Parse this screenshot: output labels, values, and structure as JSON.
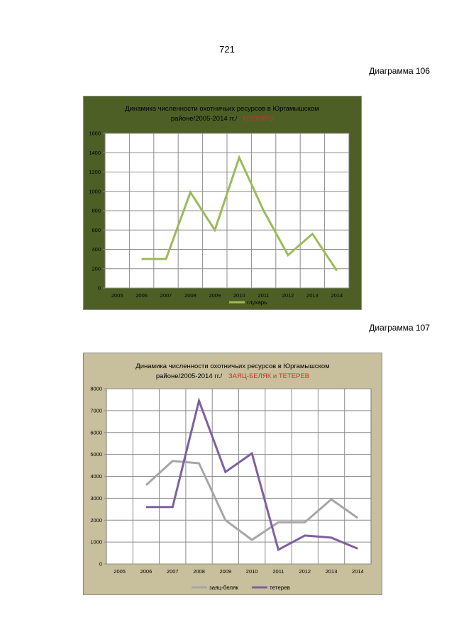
{
  "page": {
    "number": "721"
  },
  "labels": {
    "diagram_1": "Диаграмма 106",
    "diagram_2": "Диаграмма 107"
  },
  "colors": {
    "chart1_background": "#4e5f26",
    "chart2_background": "#c8bf9c",
    "plot_background": "#ffffff",
    "grid": "#8c8c8c",
    "title_accent": "#c0392b",
    "grouse": "#9bbb59",
    "hare": "#a6a6a6",
    "black_grouse": "#7f5fa0"
  },
  "chart_data": [
    {
      "type": "line",
      "title_line1": "Динамика численности охотничьих ресурсов  в  Юргамышском",
      "title_line2_plain": "районе/2005-2014 гг./",
      "title_line2_accent": "ГЛУХАРЬ",
      "x": [
        "2005",
        "2006",
        "2007",
        "2008",
        "2009",
        "2010",
        "2011",
        "2012",
        "2013",
        "2014"
      ],
      "ylim": [
        0,
        1600
      ],
      "yticks": [
        "0",
        "200",
        "400",
        "600",
        "800",
        "1000",
        "1200",
        "1400",
        "1600"
      ],
      "grid": true,
      "legend_position": "bottom",
      "series": [
        {
          "name": "глухарь",
          "color": "#9bbb59",
          "values": [
            null,
            300,
            300,
            990,
            600,
            1350,
            800,
            340,
            560,
            180
          ]
        }
      ]
    },
    {
      "type": "line",
      "title_line1": "Динамика численности  охотничьих ресурсов   в  Юргамышском",
      "title_line2_plain": "районе/2005-2014   гг./",
      "title_line2_accent": "ЗАЯЦ-БЕЛЯК и ТЕТЕРЕВ",
      "x": [
        "2005",
        "2006",
        "2007",
        "2008",
        "2009",
        "2010",
        "2011",
        "2012",
        "2013",
        "2014"
      ],
      "ylim": [
        0,
        8000
      ],
      "yticks": [
        "0",
        "1000",
        "2000",
        "3000",
        "4000",
        "5000",
        "6000",
        "7000",
        "8000"
      ],
      "grid": true,
      "legend_position": "bottom",
      "series": [
        {
          "name": "заяц-беляк",
          "color": "#a6a6a6",
          "values": [
            null,
            3600,
            4700,
            4600,
            2000,
            1100,
            1900,
            1900,
            2950,
            2100
          ]
        },
        {
          "name": "тетерев",
          "color": "#7f5fa0",
          "values": [
            null,
            2600,
            2600,
            7450,
            4200,
            5050,
            650,
            1300,
            1200,
            700
          ]
        }
      ]
    }
  ]
}
